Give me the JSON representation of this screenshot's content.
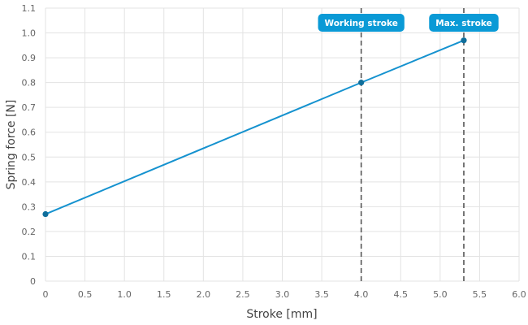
{
  "chart_data": {
    "type": "line",
    "xlabel": "Stroke [mm]",
    "ylabel": "Spring force [N]",
    "xlim": [
      0,
      6.0
    ],
    "ylim": [
      0,
      1.1
    ],
    "x_ticks": [
      0,
      0.5,
      1.0,
      1.5,
      2.0,
      2.5,
      3.0,
      3.5,
      4.0,
      4.5,
      5.0,
      5.5,
      6.0
    ],
    "x_tick_labels": [
      "0",
      "0.5",
      "1.0",
      "1.5",
      "2.0",
      "2.5",
      "3.0",
      "3.5",
      "4.0",
      "4.5",
      "5.0",
      "5.5",
      "6.0"
    ],
    "y_ticks": [
      0,
      0.1,
      0.2,
      0.3,
      0.4,
      0.5,
      0.6,
      0.7,
      0.8,
      0.9,
      1.0,
      1.1
    ],
    "y_tick_labels": [
      "0",
      "0.1",
      "0.2",
      "0.3",
      "0.4",
      "0.5",
      "0.6",
      "0.7",
      "0.8",
      "0.9",
      "1.0",
      "1.1"
    ],
    "grid": true,
    "series": [
      {
        "color": "#1592cf",
        "x": [
          0,
          4.0,
          5.3
        ],
        "y": [
          0.27,
          0.8,
          0.97
        ]
      }
    ],
    "annotations": [
      {
        "label": "Working stroke",
        "x": 4.0,
        "style": "dashed-vertical"
      },
      {
        "label": "Max. stroke",
        "x": 5.3,
        "style": "dashed-vertical"
      }
    ],
    "colors": {
      "series": "#1592cf",
      "point": "#0f6e9b",
      "badge": "#0a9ad6",
      "marker_line": "#555555"
    }
  }
}
